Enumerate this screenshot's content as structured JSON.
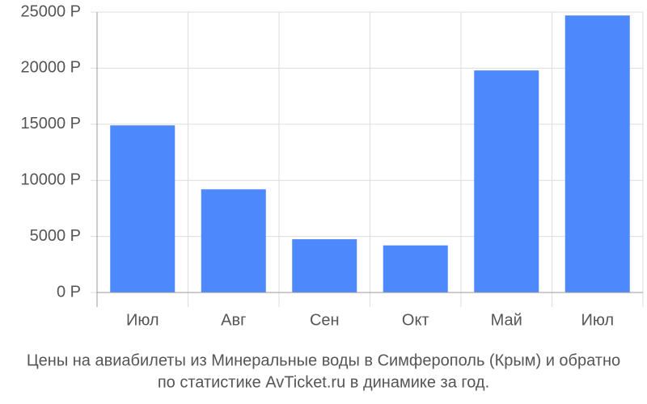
{
  "chart_data": {
    "type": "bar",
    "title": [
      "Цены на авиабилеты из Минеральные воды в Симферополь (Крым) и обратно",
      "по статистике AvTicket.ru в динамике за год."
    ],
    "categories": [
      "Июл",
      "Авг",
      "Сен",
      "Окт",
      "Май",
      "Июл"
    ],
    "values": [
      14900,
      9200,
      4750,
      4200,
      19800,
      24700
    ],
    "color": "#4d88fc",
    "ylim": [
      0,
      25000
    ],
    "yticks": [
      {
        "value": 0,
        "label": "0 Р"
      },
      {
        "value": 5000,
        "label": "5000 Р"
      },
      {
        "value": 10000,
        "label": "10000 Р"
      },
      {
        "value": 15000,
        "label": "15000 Р"
      },
      {
        "value": 20000,
        "label": "20000 Р"
      },
      {
        "value": 25000,
        "label": "25000 Р"
      }
    ],
    "grid": true
  }
}
